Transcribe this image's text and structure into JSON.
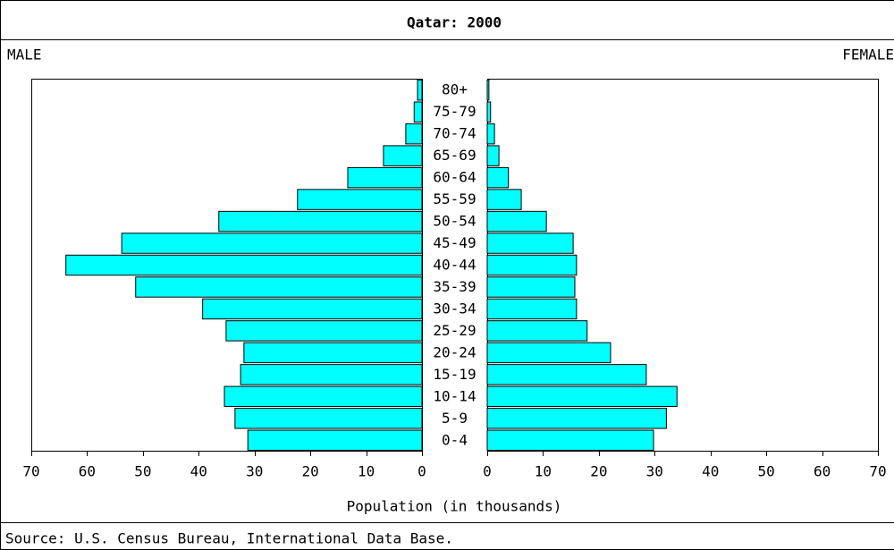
{
  "chart_data": {
    "type": "pyramid",
    "title": "Qatar: 2000",
    "categories": [
      "80+",
      "75-79",
      "70-74",
      "65-69",
      "60-64",
      "55-59",
      "50-54",
      "45-49",
      "40-44",
      "35-39",
      "30-34",
      "25-29",
      "20-24",
      "15-19",
      "10-14",
      "5-9",
      "0-4"
    ],
    "series": [
      {
        "name": "MALE",
        "color": "#00ffff",
        "values": [
          0.8,
          1.4,
          2.9,
          6.9,
          13.3,
          22.3,
          36.4,
          53.8,
          63.8,
          51.3,
          39.3,
          35.1,
          31.9,
          32.5,
          35.4,
          33.5,
          31.2
        ]
      },
      {
        "name": "FEMALE",
        "color": "#00ffff",
        "values": [
          0.3,
          0.6,
          1.3,
          2.1,
          3.8,
          6.1,
          10.6,
          15.4,
          16.0,
          15.7,
          16.0,
          17.9,
          22.1,
          28.5,
          34.0,
          32.1,
          29.8
        ]
      }
    ],
    "xlim": [
      0,
      70
    ],
    "xticks": [
      0,
      10,
      20,
      30,
      40,
      50,
      60,
      70
    ],
    "xlabel": "Population (in thousands)",
    "source": "Source: U.S. Census Bureau, International Data Base."
  }
}
